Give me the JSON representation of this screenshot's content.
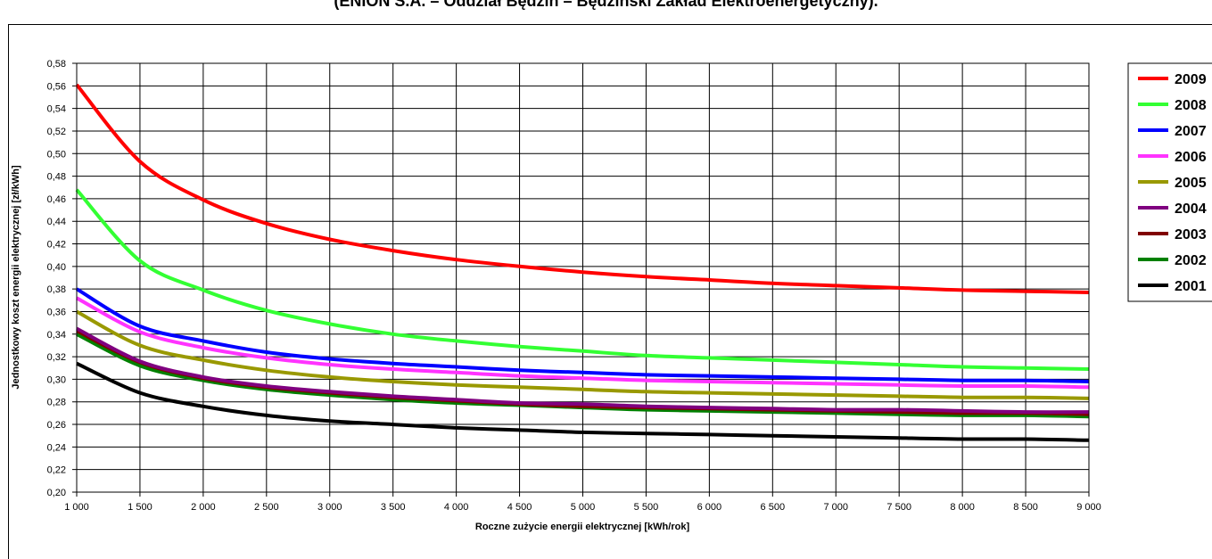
{
  "title": "(ENION S.A. – Oddział Będzin – Będziński Zakład Elektroenergetyczny).",
  "chart_data": {
    "type": "line",
    "xlabel": "Roczne zużycie energii elektrycznej  [kWh/rok]",
    "ylabel": "Jednostkowy koszt energii elektrycznej  [zł/kWh]",
    "xlim": [
      1000,
      9000
    ],
    "ylim": [
      0.2,
      0.58
    ],
    "grid": true,
    "legend_position": "right",
    "x_ticks": [
      1000,
      1500,
      2000,
      2500,
      3000,
      3500,
      4000,
      4500,
      5000,
      5500,
      6000,
      6500,
      7000,
      7500,
      8000,
      8500,
      9000
    ],
    "x_tick_labels": [
      "1 000",
      "1 500",
      "2 000",
      "2 500",
      "3 000",
      "3 500",
      "4 000",
      "4 500",
      "5 000",
      "5 500",
      "6 000",
      "6 500",
      "7 000",
      "7 500",
      "8 000",
      "8 500",
      "9 000"
    ],
    "y_ticks": [
      0.2,
      0.22,
      0.24,
      0.26,
      0.28,
      0.3,
      0.32,
      0.34,
      0.36,
      0.38,
      0.4,
      0.42,
      0.44,
      0.46,
      0.48,
      0.5,
      0.52,
      0.54,
      0.56,
      0.58
    ],
    "y_tick_labels": [
      "0,20",
      "0,22",
      "0,24",
      "0,26",
      "0,28",
      "0,30",
      "0,32",
      "0,34",
      "0,36",
      "0,38",
      "0,40",
      "0,42",
      "0,44",
      "0,46",
      "0,48",
      "0,50",
      "0,52",
      "0,54",
      "0,56",
      "0,58"
    ],
    "x": [
      1000,
      1500,
      2000,
      2500,
      3000,
      3500,
      4000,
      4500,
      5000,
      5500,
      6000,
      6500,
      7000,
      7500,
      8000,
      8500,
      9000
    ],
    "series": [
      {
        "name": "2009",
        "color": "#ff0000",
        "values": [
          0.561,
          0.493,
          0.459,
          0.438,
          0.424,
          0.414,
          0.406,
          0.4,
          0.395,
          0.391,
          0.388,
          0.385,
          0.383,
          0.381,
          0.379,
          0.378,
          0.377
        ]
      },
      {
        "name": "2008",
        "color": "#33ff33",
        "values": [
          0.468,
          0.405,
          0.379,
          0.361,
          0.349,
          0.34,
          0.334,
          0.329,
          0.325,
          0.321,
          0.319,
          0.317,
          0.315,
          0.313,
          0.311,
          0.31,
          0.309
        ]
      },
      {
        "name": "2007",
        "color": "#0000ff",
        "values": [
          0.38,
          0.347,
          0.334,
          0.324,
          0.318,
          0.314,
          0.311,
          0.308,
          0.306,
          0.304,
          0.303,
          0.302,
          0.301,
          0.3,
          0.299,
          0.299,
          0.298
        ]
      },
      {
        "name": "2006",
        "color": "#ff33ff",
        "values": [
          0.372,
          0.342,
          0.328,
          0.319,
          0.313,
          0.309,
          0.306,
          0.303,
          0.301,
          0.299,
          0.298,
          0.297,
          0.296,
          0.295,
          0.294,
          0.294,
          0.293
        ]
      },
      {
        "name": "2005",
        "color": "#999900",
        "values": [
          0.36,
          0.33,
          0.317,
          0.308,
          0.302,
          0.298,
          0.295,
          0.293,
          0.291,
          0.289,
          0.288,
          0.287,
          0.286,
          0.285,
          0.284,
          0.284,
          0.283
        ]
      },
      {
        "name": "2004",
        "color": "#800080",
        "values": [
          0.345,
          0.316,
          0.302,
          0.294,
          0.289,
          0.285,
          0.282,
          0.279,
          0.278,
          0.276,
          0.275,
          0.274,
          0.273,
          0.273,
          0.272,
          0.271,
          0.271
        ]
      },
      {
        "name": "2003",
        "color": "#800000",
        "values": [
          0.343,
          0.315,
          0.301,
          0.293,
          0.288,
          0.284,
          0.281,
          0.278,
          0.276,
          0.275,
          0.274,
          0.273,
          0.272,
          0.271,
          0.27,
          0.27,
          0.269
        ]
      },
      {
        "name": "2002",
        "color": "#008000",
        "values": [
          0.34,
          0.312,
          0.299,
          0.291,
          0.286,
          0.282,
          0.279,
          0.277,
          0.275,
          0.273,
          0.272,
          0.271,
          0.27,
          0.269,
          0.268,
          0.268,
          0.267
        ]
      },
      {
        "name": "2001",
        "color": "#000000",
        "values": [
          0.314,
          0.288,
          0.276,
          0.268,
          0.263,
          0.26,
          0.257,
          0.255,
          0.253,
          0.252,
          0.251,
          0.25,
          0.249,
          0.248,
          0.247,
          0.247,
          0.246
        ]
      }
    ]
  }
}
